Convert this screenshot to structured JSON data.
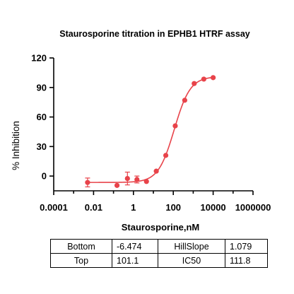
{
  "chart_data": {
    "type": "scatter",
    "title": "Staurosporine titration in EPHB1 HTRF assay",
    "xlabel": "Staurosporine,nM",
    "ylabel": "% Inhibition",
    "x_scale": "log",
    "xlim": [
      0.0001,
      1000000
    ],
    "ylim": [
      -15,
      120
    ],
    "x_ticks": [
      0.0001,
      0.01,
      1,
      100,
      10000,
      1000000
    ],
    "x_tick_labels": [
      "0.0001",
      "0.01",
      "1",
      "100",
      "10000",
      "1000000"
    ],
    "y_ticks": [
      0,
      30,
      60,
      90,
      120
    ],
    "y_tick_labels": [
      "0",
      "30",
      "60",
      "90",
      "120"
    ],
    "grid": false,
    "series": [
      {
        "color": "#e8434a",
        "points": [
          {
            "x": 0.005,
            "y": -6.5,
            "err": 4.5
          },
          {
            "x": 0.15,
            "y": -9.5,
            "err": 0
          },
          {
            "x": 0.5,
            "y": -2.5,
            "err": 6.5
          },
          {
            "x": 1.5,
            "y": -3.5,
            "err": 3.5
          },
          {
            "x": 4.5,
            "y": -5.5,
            "err": 0
          },
          {
            "x": 14,
            "y": 5,
            "err": 0
          },
          {
            "x": 42,
            "y": 21,
            "err": 0
          },
          {
            "x": 125,
            "y": 51,
            "err": 0
          },
          {
            "x": 375,
            "y": 77,
            "err": 0
          },
          {
            "x": 1120,
            "y": 94,
            "err": 0
          },
          {
            "x": 3400,
            "y": 98.5,
            "err": 0
          },
          {
            "x": 10000,
            "y": 100,
            "err": 0
          }
        ],
        "fit": {
          "model": "four-parameter logistic",
          "bottom": -6.474,
          "top": 101.1,
          "hillslope": 1.079,
          "ic50": 111.8
        }
      }
    ]
  },
  "params_table": {
    "rows": [
      {
        "name1": "Bottom",
        "val1": "-6.474",
        "name2": "HillSlope",
        "val2": "1.079"
      },
      {
        "name1": "Top",
        "val1": "101.1",
        "name2": "IC50",
        "val2": "111.8"
      }
    ]
  }
}
